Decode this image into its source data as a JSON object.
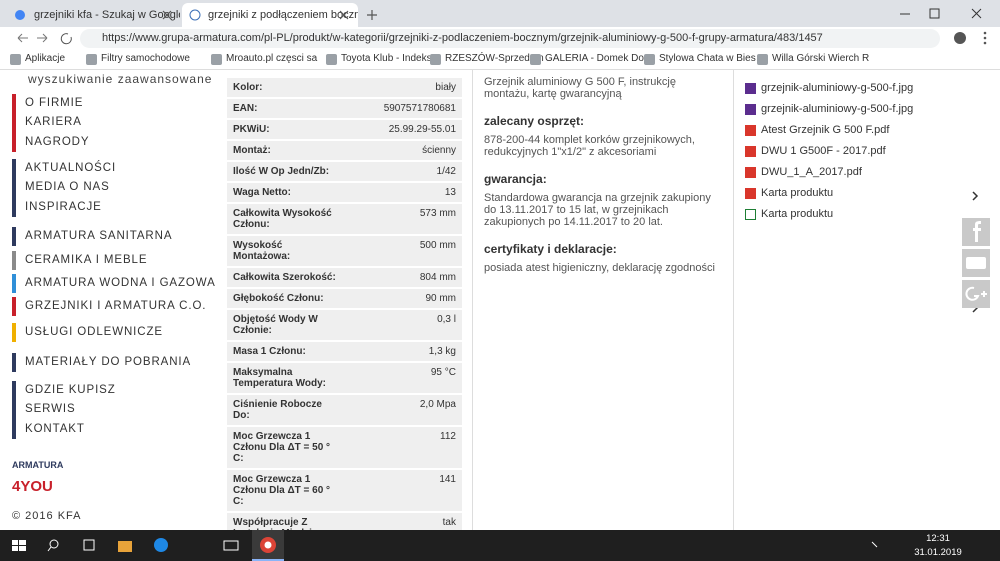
{
  "browser": {
    "tabs": [
      "grzejniki kfa - Szukaj w Google",
      "grzejniki z podłączeniem boczny"
    ],
    "url": "https://www.grupa-armatura.com/pl-PL/produkt/w-kategorii/grzejniki-z-podlaczeniem-bocznym/grzejnik-aluminiowy-g-500-f-grupy-armatura/483/1457",
    "bookmarks": [
      "Aplikacje",
      "Filtry samochodowe",
      "Mroauto.pl częsci sa",
      "Toyota Klub - Indeks",
      "RZESZÓW-Sprzedam",
      "GALERIA - Domek Do",
      "Stylowa Chata w Bies",
      "Willa Górski Wierch R"
    ]
  },
  "sidebar": {
    "search": "wyszukiwanie zaawansowane",
    "groups": [
      {
        "color": "#c8202a",
        "items": [
          "O FIRMIE",
          "KARIERA",
          "NAGRODY"
        ]
      },
      {
        "color": "#2e3a5e",
        "items": [
          "AKTUALNOŚCI",
          "MEDIA O NAS",
          "INSPIRACJE"
        ]
      },
      {
        "color": "#2e3a5e",
        "items": [
          "ARMATURA SANITARNA"
        ]
      },
      {
        "color": "#8a8a8a",
        "items": [
          "CERAMIKA I MEBLE"
        ]
      },
      {
        "color": "#2f8fd8",
        "items": [
          "ARMATURA WODNA I GAZOWA"
        ]
      },
      {
        "color": "#c8202a",
        "items": [
          "GRZEJNIKI I ARMATURA C.O."
        ]
      },
      {
        "color": "#f0b000",
        "items": [
          "USŁUGI ODLEWNICZE"
        ]
      },
      {
        "color": "#2e3a5e",
        "items": [
          "MATERIAŁY DO POBRANIA"
        ]
      },
      {
        "color": "#2e3a5e",
        "items": [
          "GDZIE KUPISZ",
          "SERWIS",
          "KONTAKT"
        ]
      }
    ],
    "logo": {
      "top": "ARMATURA",
      "bottom": "4YOU"
    },
    "copyright": "© 2016 KFA"
  },
  "specs": {
    "rows": [
      [
        "Kolor:",
        "biały"
      ],
      [
        "EAN:",
        "5907571780681"
      ],
      [
        "PKWiU:",
        "25.99.29-55.01"
      ],
      [
        "Montaż:",
        "ścienny"
      ],
      [
        "Ilość W Op Jedn/Zb:",
        "1/42"
      ],
      [
        "Waga Netto:",
        "13"
      ],
      [
        "Całkowita Wysokość Członu:",
        "573 mm"
      ],
      [
        "Wysokość Montażowa:",
        "500 mm"
      ],
      [
        "Całkowita Szerokość:",
        "804 mm"
      ],
      [
        "Głębokość Członu:",
        "90 mm"
      ],
      [
        "Objętość Wody W Członie:",
        "0,3 l"
      ],
      [
        "Masa 1 Członu:",
        "1,3 kg"
      ],
      [
        "Maksymalna Temperatura Wody:",
        "95 °C"
      ],
      [
        "Ciśnienie Robocze Do:",
        "2,0 Mpa"
      ],
      [
        "Moc Grzewcza 1 Członu Dla ΔT = 50 ° C:",
        "112"
      ],
      [
        "Moc Grzewcza 1 Członu Dla ΔT = 60 ° C:",
        "141"
      ],
      [
        "Współpracuje Z Instalacją Miedzianą:",
        "tak"
      ]
    ]
  },
  "info": {
    "intro": "Grzejnik aluminiowy G 500 F, instrukcję montażu, kartę gwarancyjną",
    "sections": [
      {
        "heading": "zalecany osprzęt:",
        "body": "878-200-44 komplet korków grzejnikowych, redukcyjnych 1\"x1/2\" z akcesoriami"
      },
      {
        "heading": "gwarancja:",
        "body": "Standardowa gwarancja na grzejnik zakupiony do 13.11.2017 to 15 lat, w grzejnikach zakupionych po 14.11.2017 to 20 lat."
      },
      {
        "heading": "certyfikaty i deklaracje:",
        "body": "posiada atest higieniczny, deklarację zgodności"
      }
    ]
  },
  "files": [
    {
      "name": "grzejnik-aluminiowy-g-500-f.jpg",
      "icon": "image"
    },
    {
      "name": "grzejnik-aluminiowy-g-500-f.jpg",
      "icon": "image"
    },
    {
      "name": "Atest Grzejnik G 500 F.pdf",
      "icon": "pdf"
    },
    {
      "name": "DWU 1 G500F - 2017.pdf",
      "icon": "pdf"
    },
    {
      "name": "DWU_1_A_2017.pdf",
      "icon": "pdf"
    },
    {
      "name": "Karta produktu",
      "icon": "pdf"
    },
    {
      "name": "Karta produktu",
      "icon": "excel"
    }
  ],
  "taskbar": {
    "time": "12:31",
    "date": "31.01.2019"
  }
}
